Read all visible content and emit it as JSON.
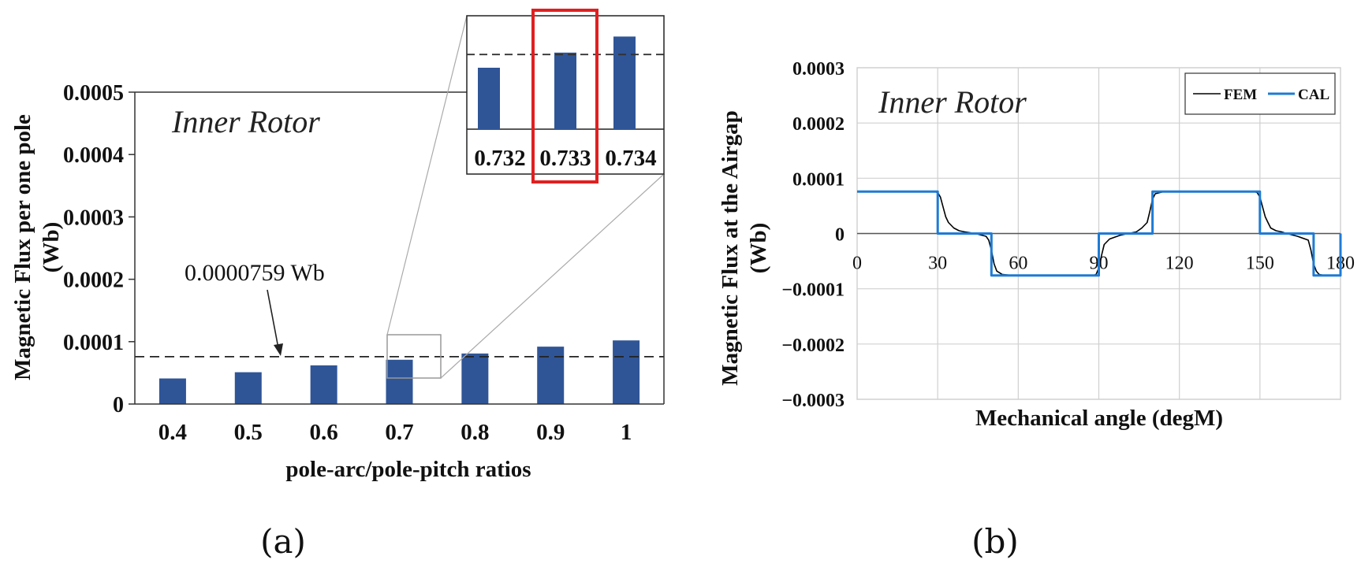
{
  "chart_data": [
    {
      "type": "bar",
      "panel_label": "(a)",
      "annotation": "Inner Rotor",
      "ylabel_line1": "Magnetic Flux per one pole",
      "ylabel_line2": "(Wb)",
      "xlabel": "pole-arc/pole-pitch ratios",
      "categories": [
        "0.4",
        "0.5",
        "0.6",
        "0.7",
        "0.8",
        "0.9",
        "1"
      ],
      "values": [
        4.1e-05,
        5.1e-05,
        6.2e-05,
        7.1e-05,
        8.1e-05,
        9.2e-05,
        0.000102
      ],
      "ylim": [
        0,
        0.0005
      ],
      "yticks": [
        "0",
        "0.0001",
        "0.0002",
        "0.0003",
        "0.0004",
        "0.0005"
      ],
      "ytick_values": [
        0,
        0.0001,
        0.0002,
        0.0003,
        0.0004,
        0.0005
      ],
      "reference_line": {
        "value": 7.59e-05,
        "label": "0.0000759 Wb",
        "style": "dashed"
      },
      "bar_color": "#2f5597",
      "inset": {
        "categories": [
          "0.732",
          "0.733",
          "0.734"
        ],
        "values": [
          7.45e-05,
          7.61e-05,
          7.78e-05
        ],
        "reference_value": 7.59e-05,
        "ylim": [
          6.8e-05,
          8e-05
        ],
        "highlight": "0.733",
        "highlight_color": "#e02020"
      }
    },
    {
      "type": "line",
      "panel_label": "(b)",
      "annotation": "Inner Rotor",
      "ylabel_line1": "Magnetic Flux at the Airgap",
      "ylabel_line2": "(Wb)",
      "xlabel": "Mechanical angle (degM)",
      "xlim": [
        0,
        180
      ],
      "ylim": [
        -0.0003,
        0.0003
      ],
      "xticks": [
        "0",
        "30",
        "60",
        "90",
        "120",
        "150",
        "180"
      ],
      "xtick_values": [
        0,
        30,
        60,
        90,
        120,
        150,
        180
      ],
      "yticks": [
        "0.0003",
        "0.0002",
        "0.0001",
        "0",
        "−0.0001",
        "−0.0002",
        "−0.0003"
      ],
      "ytick_values": [
        0.0003,
        0.0002,
        0.0001,
        0,
        -0.0001,
        -0.0002,
        -0.0003
      ],
      "grid": true,
      "legend_placement": "top-right",
      "series": [
        {
          "name": "FEM",
          "color": "#000000",
          "x": [
            0,
            29,
            30,
            31,
            32,
            33,
            34,
            36,
            38,
            40,
            44,
            48,
            49,
            50,
            51,
            52,
            54,
            58,
            62,
            70,
            80,
            88,
            89,
            90,
            91,
            92,
            94,
            98,
            104,
            106,
            108,
            109,
            110,
            111,
            114,
            120,
            130,
            140,
            148,
            149,
            150,
            151,
            152,
            153,
            154,
            156,
            158,
            160,
            164,
            168,
            169,
            170,
            171,
            172,
            174,
            180
          ],
          "y": [
            7.59e-05,
            7.59e-05,
            7.4e-05,
            6.6e-05,
            4.8e-05,
            3e-05,
            2e-05,
            1e-05,
            5e-06,
            3e-06,
            0.0,
            -5e-06,
            -1.2e-05,
            -3e-05,
            -5.5e-05,
            -6.8e-05,
            -7.4e-05,
            -7.59e-05,
            -7.59e-05,
            -7.59e-05,
            -7.59e-05,
            -7.59e-05,
            -7.4e-05,
            -6.2e-05,
            -4e-05,
            -2e-05,
            -1e-05,
            -3e-06,
            3e-06,
            1e-05,
            2e-05,
            4e-05,
            6.2e-05,
            7.2e-05,
            7.55e-05,
            7.59e-05,
            7.59e-05,
            7.59e-05,
            7.59e-05,
            7.4e-05,
            6.6e-05,
            4.8e-05,
            3e-05,
            2e-05,
            1e-05,
            5e-06,
            3e-06,
            0.0,
            -5e-06,
            -1.2e-05,
            -3e-05,
            -5.5e-05,
            -6.8e-05,
            -7.4e-05,
            -7.59e-05,
            -7.59e-05
          ]
        },
        {
          "name": "CAL",
          "color": "#1f7bd4",
          "x": [
            0,
            30,
            30,
            50,
            50,
            90,
            90,
            110,
            110,
            150,
            150,
            170,
            170,
            180,
            180
          ],
          "y": [
            7.59e-05,
            7.59e-05,
            0,
            0,
            -7.59e-05,
            -7.59e-05,
            0,
            0,
            7.59e-05,
            7.59e-05,
            0,
            0,
            -7.59e-05,
            -7.59e-05,
            0
          ]
        }
      ]
    }
  ]
}
